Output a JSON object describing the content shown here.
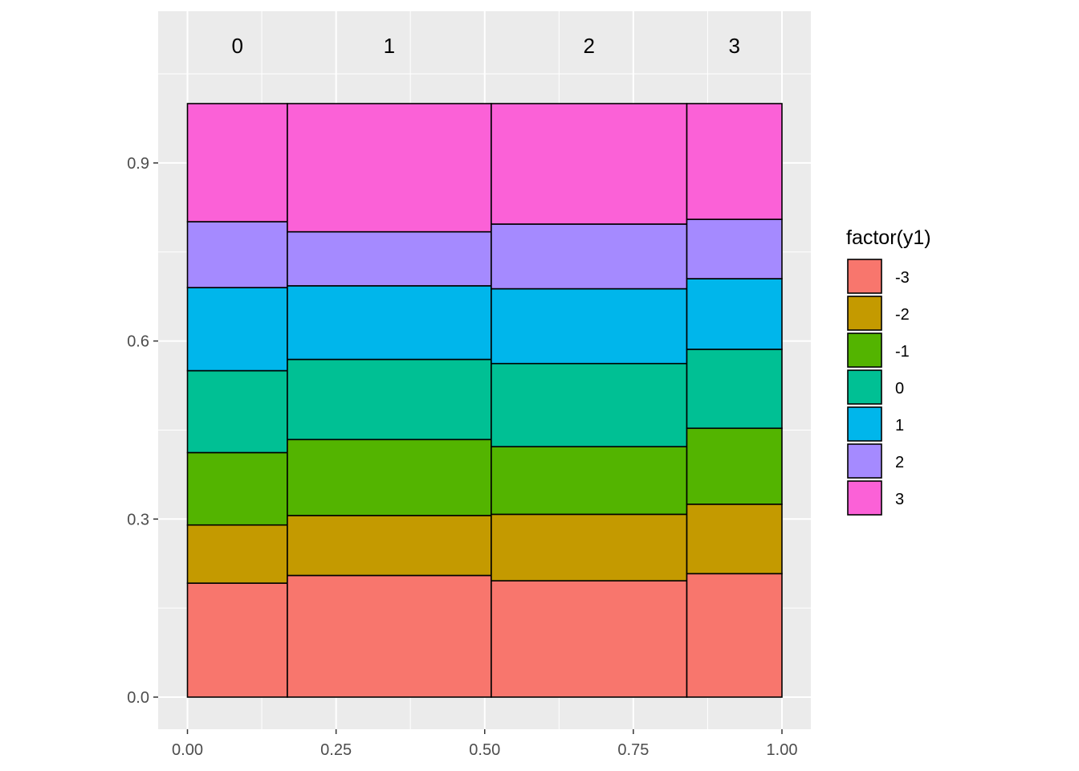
{
  "chart_data": {
    "type": "mosaic",
    "title": "",
    "xlabel": "",
    "ylabel": "",
    "xlim": [
      0,
      1
    ],
    "ylim": [
      0,
      1
    ],
    "x_ticks": [
      "0.00",
      "0.25",
      "0.50",
      "0.75",
      "1.00"
    ],
    "y_ticks": [
      "0.0",
      "0.3",
      "0.6",
      "0.9"
    ],
    "grid": true,
    "legend_position": "right",
    "legend_title": "factor(y1)",
    "columns": [
      {
        "label": "0",
        "x_start": 0.0,
        "x_end": 0.168
      },
      {
        "label": "1",
        "x_start": 0.168,
        "x_end": 0.511
      },
      {
        "label": "2",
        "x_start": 0.511,
        "x_end": 0.84
      },
      {
        "label": "3",
        "x_start": 0.84,
        "x_end": 1.0
      }
    ],
    "series": [
      {
        "name": "-3",
        "color": "#F8766D",
        "values": [
          0.192,
          0.205,
          0.196,
          0.208
        ]
      },
      {
        "name": "-2",
        "color": "#C49A00",
        "values": [
          0.098,
          0.101,
          0.112,
          0.117
        ]
      },
      {
        "name": "-1",
        "color": "#53B400",
        "values": [
          0.122,
          0.128,
          0.114,
          0.128
        ]
      },
      {
        "name": "0",
        "color": "#00C094",
        "values": [
          0.138,
          0.135,
          0.14,
          0.133
        ]
      },
      {
        "name": "1",
        "color": "#00B6EB",
        "values": [
          0.14,
          0.124,
          0.126,
          0.119
        ]
      },
      {
        "name": "2",
        "color": "#A58AFF",
        "values": [
          0.111,
          0.091,
          0.109,
          0.1
        ]
      },
      {
        "name": "3",
        "color": "#FB61D7",
        "values": [
          0.199,
          0.216,
          0.203,
          0.195
        ]
      }
    ]
  }
}
